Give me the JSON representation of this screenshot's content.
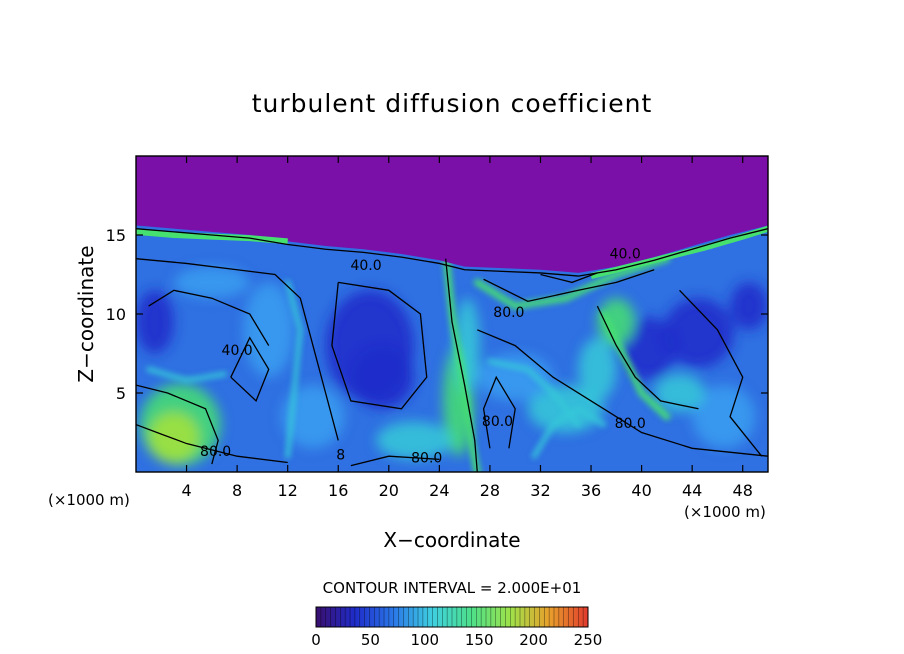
{
  "chart_data": {
    "type": "heatmap",
    "title": "turbulent diffusion coefficient",
    "xlabel": "X−coordinate",
    "ylabel": "Z−coordinate",
    "x_unit_left": "(×1000 m)",
    "x_unit_right": "(×1000 m)",
    "xlim": [
      0,
      50
    ],
    "ylim": [
      0,
      20
    ],
    "x_ticks": [
      4,
      8,
      12,
      16,
      20,
      24,
      28,
      32,
      36,
      40,
      44,
      48
    ],
    "x_tick_labels": [
      "4",
      "8",
      "12",
      "16",
      "20",
      "24",
      "28",
      "32",
      "36",
      "40",
      "44",
      "48"
    ],
    "y_ticks": [
      5,
      10,
      15
    ],
    "y_tick_labels": [
      "5",
      "10",
      "15"
    ],
    "contour_interval_text": "CONTOUR INTERVAL = 2.000E+01",
    "contour_interval": 20,
    "contour_labels": [
      {
        "text": "40.0",
        "x": 18.2,
        "z": 12.8
      },
      {
        "text": "40.0",
        "x": 8.0,
        "z": 7.4
      },
      {
        "text": "80.0",
        "x": 29.5,
        "z": 9.8
      },
      {
        "text": "40.0",
        "x": 38.7,
        "z": 13.5
      },
      {
        "text": "80.0",
        "x": 28.6,
        "z": 2.9
      },
      {
        "text": "80.0",
        "x": 39.1,
        "z": 2.8
      },
      {
        "text": "80.0",
        "x": 6.3,
        "z": 1.0
      },
      {
        "text": "80.0",
        "x": 23.0,
        "z": 0.6
      },
      {
        "text": "8",
        "x": 16.2,
        "z": 0.8
      }
    ],
    "colorbar": {
      "min": 0,
      "max": 250,
      "ticks": [
        0,
        50,
        100,
        150,
        200,
        250
      ],
      "tick_labels": [
        "0",
        "50",
        "100",
        "150",
        "200",
        "250"
      ],
      "colors": [
        "#3a0f6e",
        "#1f2cc9",
        "#2a78e8",
        "#3fd0e0",
        "#4de08a",
        "#9ee24a",
        "#e8a02c",
        "#e23a2c"
      ]
    },
    "field_colors": {
      "stratosphere": "#7a10a8",
      "background": "#2f70e2",
      "low": "#1f2cc9",
      "mid": "#3a9ef0",
      "high": "#35c9d8",
      "peak": "#46e070",
      "extreme": "#a6e238"
    },
    "grid": false,
    "legend": "none"
  }
}
